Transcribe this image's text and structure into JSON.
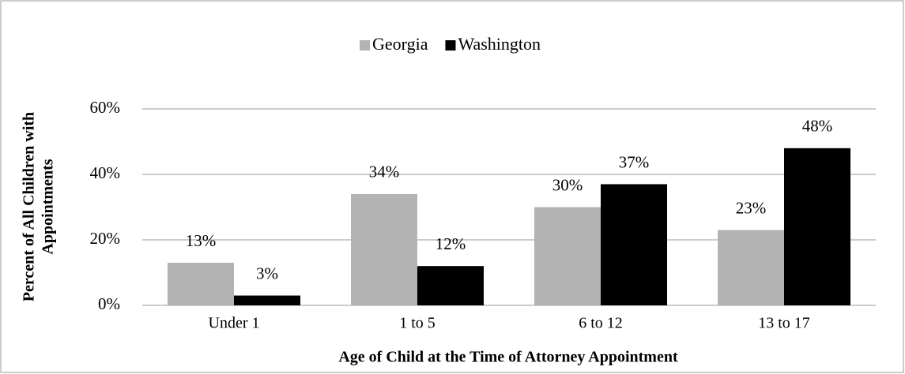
{
  "chart_data": {
    "type": "bar",
    "categories": [
      "Under 1",
      "1 to 5",
      "6 to 12",
      "13 to 17"
    ],
    "series": [
      {
        "name": "Georgia",
        "color": "#b3b3b3",
        "values": [
          13,
          34,
          30,
          23
        ],
        "value_labels": [
          "13%",
          "34%",
          "30%",
          "23%"
        ]
      },
      {
        "name": "Washington",
        "color": "#000000",
        "values": [
          3,
          12,
          37,
          48
        ],
        "value_labels": [
          "3%",
          "12%",
          "37%",
          "48%"
        ]
      }
    ],
    "xlabel": "Age of Child at the Time of Attorney Appointment",
    "ylabel": [
      "Percent of All Children with",
      "Appointments"
    ],
    "ylim": [
      0,
      60
    ],
    "yticks": [
      {
        "value": 0,
        "label": "0%"
      },
      {
        "value": 20,
        "label": "20%"
      },
      {
        "value": 40,
        "label": "40%"
      },
      {
        "value": 60,
        "label": "60%"
      }
    ],
    "grid": true,
    "legend": "top"
  }
}
